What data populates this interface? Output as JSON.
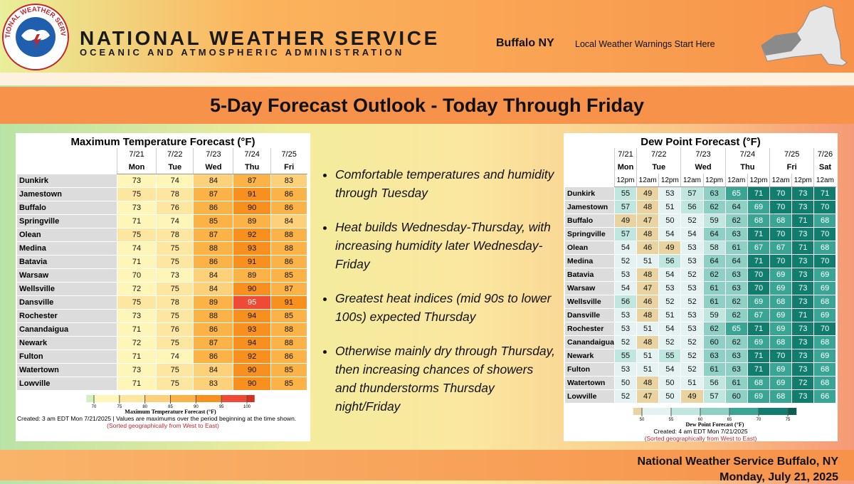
{
  "header": {
    "logo_text": "NATIONAL WEATHER SERVICE",
    "agency": "NATIONAL WEATHER SERVICE",
    "subtitle": "OCEANIC AND ATMOSPHERIC ADMINISTRATION",
    "office": "Buffalo NY",
    "tagline": "Local Weather Warnings Start Here"
  },
  "title": "5-Day Forecast Outlook - Today Through Friday",
  "max_temp": {
    "title": "Maximum Temperature Forecast (°F)",
    "columns": [
      {
        "date": "7/21",
        "day": "Mon"
      },
      {
        "date": "7/22",
        "day": "Tue"
      },
      {
        "date": "7/23",
        "day": "Wed"
      },
      {
        "date": "7/24",
        "day": "Thu"
      },
      {
        "date": "7/25",
        "day": "Fri"
      }
    ],
    "rows": [
      {
        "name": "Dunkirk",
        "values": [
          73,
          74,
          84,
          87,
          83
        ]
      },
      {
        "name": "Jamestown",
        "values": [
          75,
          78,
          87,
          91,
          86
        ]
      },
      {
        "name": "Buffalo",
        "values": [
          73,
          76,
          86,
          90,
          86
        ]
      },
      {
        "name": "Springville",
        "values": [
          71,
          74,
          85,
          89,
          84
        ]
      },
      {
        "name": "Olean",
        "values": [
          75,
          78,
          87,
          92,
          88
        ]
      },
      {
        "name": "Medina",
        "values": [
          74,
          75,
          88,
          93,
          88
        ]
      },
      {
        "name": "Batavia",
        "values": [
          71,
          75,
          86,
          91,
          86
        ]
      },
      {
        "name": "Warsaw",
        "values": [
          70,
          73,
          84,
          89,
          85
        ]
      },
      {
        "name": "Wellsville",
        "values": [
          72,
          75,
          84,
          90,
          87
        ]
      },
      {
        "name": "Dansville",
        "values": [
          75,
          78,
          89,
          95,
          91
        ]
      },
      {
        "name": "Rochester",
        "values": [
          73,
          75,
          88,
          94,
          85
        ]
      },
      {
        "name": "Canandaigua",
        "values": [
          71,
          76,
          86,
          93,
          88
        ]
      },
      {
        "name": "Newark",
        "values": [
          72,
          75,
          87,
          94,
          88
        ]
      },
      {
        "name": "Fulton",
        "values": [
          71,
          74,
          86,
          92,
          86
        ]
      },
      {
        "name": "Watertown",
        "values": [
          73,
          75,
          84,
          90,
          85
        ]
      },
      {
        "name": "Lowville",
        "values": [
          71,
          75,
          83,
          90,
          85
        ]
      }
    ],
    "legend": {
      "ticks": [
        70,
        75,
        80,
        85,
        90,
        95,
        100
      ],
      "colors": [
        "#d6efc0",
        "#fdf6b8",
        "#fde7a0",
        "#fdd07a",
        "#fbb347",
        "#f7901e",
        "#ef4a36",
        "#d7301f"
      ],
      "label": "Maximum Temperature Forecast (°F)"
    },
    "note": "Created: 3 am EDT Mon 7/21/2025  |  Values are maximums over the period beginning at the time shown.",
    "sort_note": "(Sorted geographically from West to East)"
  },
  "dew_point": {
    "title": "Dew Point Forecast (°F)",
    "groups": [
      {
        "date": "7/21",
        "day": "Mon",
        "times": [
          "12pm"
        ]
      },
      {
        "date": "7/22",
        "day": "Tue",
        "times": [
          "12am",
          "12pm"
        ]
      },
      {
        "date": "7/23",
        "day": "Wed",
        "times": [
          "12am",
          "12pm"
        ]
      },
      {
        "date": "7/24",
        "day": "Thu",
        "times": [
          "12am",
          "12pm"
        ]
      },
      {
        "date": "7/25",
        "day": "Fri",
        "times": [
          "12am",
          "12pm"
        ]
      },
      {
        "date": "7/26",
        "day": "Sat",
        "times": [
          "12am"
        ]
      }
    ],
    "rows": [
      {
        "name": "Dunkirk",
        "values": [
          55,
          49,
          53,
          57,
          63,
          65,
          71,
          70,
          73,
          71
        ]
      },
      {
        "name": "Jamestown",
        "values": [
          57,
          48,
          51,
          56,
          62,
          64,
          69,
          70,
          73,
          70
        ]
      },
      {
        "name": "Buffalo",
        "values": [
          49,
          47,
          50,
          52,
          59,
          62,
          68,
          68,
          71,
          68
        ]
      },
      {
        "name": "Springville",
        "values": [
          57,
          48,
          54,
          54,
          64,
          63,
          71,
          70,
          73,
          70
        ]
      },
      {
        "name": "Olean",
        "values": [
          54,
          46,
          49,
          53,
          58,
          61,
          67,
          67,
          71,
          68
        ]
      },
      {
        "name": "Medina",
        "values": [
          52,
          51,
          56,
          53,
          64,
          64,
          71,
          70,
          73,
          70
        ]
      },
      {
        "name": "Batavia",
        "values": [
          53,
          48,
          54,
          52,
          62,
          63,
          70,
          69,
          73,
          69
        ]
      },
      {
        "name": "Warsaw",
        "values": [
          54,
          47,
          53,
          53,
          61,
          63,
          70,
          69,
          73,
          69
        ]
      },
      {
        "name": "Wellsville",
        "values": [
          56,
          46,
          52,
          52,
          61,
          62,
          69,
          68,
          73,
          68
        ]
      },
      {
        "name": "Dansville",
        "values": [
          53,
          48,
          51,
          53,
          59,
          62,
          67,
          69,
          71,
          69
        ]
      },
      {
        "name": "Rochester",
        "values": [
          53,
          51,
          54,
          53,
          62,
          65,
          71,
          69,
          73,
          70
        ]
      },
      {
        "name": "Canandaigua",
        "values": [
          52,
          48,
          52,
          52,
          60,
          62,
          69,
          68,
          73,
          68
        ]
      },
      {
        "name": "Newark",
        "values": [
          55,
          51,
          55,
          52,
          63,
          63,
          71,
          70,
          73,
          69
        ]
      },
      {
        "name": "Fulton",
        "values": [
          53,
          51,
          54,
          52,
          61,
          63,
          71,
          69,
          73,
          68
        ]
      },
      {
        "name": "Watertown",
        "values": [
          50,
          48,
          50,
          51,
          56,
          61,
          68,
          69,
          72,
          68
        ]
      },
      {
        "name": "Lowville",
        "values": [
          52,
          47,
          50,
          49,
          57,
          60,
          69,
          68,
          73,
          66
        ]
      }
    ],
    "legend": {
      "ticks": [
        50,
        55,
        60,
        65,
        70,
        75
      ],
      "colors": [
        "#e9d3a0",
        "#e4f3f1",
        "#bfe6df",
        "#8fd0c4",
        "#3aa594",
        "#117d6e",
        "#0b5e52"
      ],
      "label": "Dew Point Forecast (°F)"
    },
    "note": "Created: 4 am EDT Mon 7/21/2025",
    "sort_note": "(Sorted geographically from West to East)"
  },
  "bullets": [
    "Comfortable temperatures and humidity through Tuesday",
    "Heat builds Wednesday-Thursday, with increasing humidity later Wednesday-Friday",
    "Greatest heat indices (mid 90s to lower 100s) expected Thursday",
    "Otherwise mainly dry through Thursday, then increasing chances of showers and thunderstorms Thursday night/Friday"
  ],
  "footer": {
    "office": "National Weather Service Buffalo, NY",
    "date": "Monday, July 21, 2025"
  }
}
